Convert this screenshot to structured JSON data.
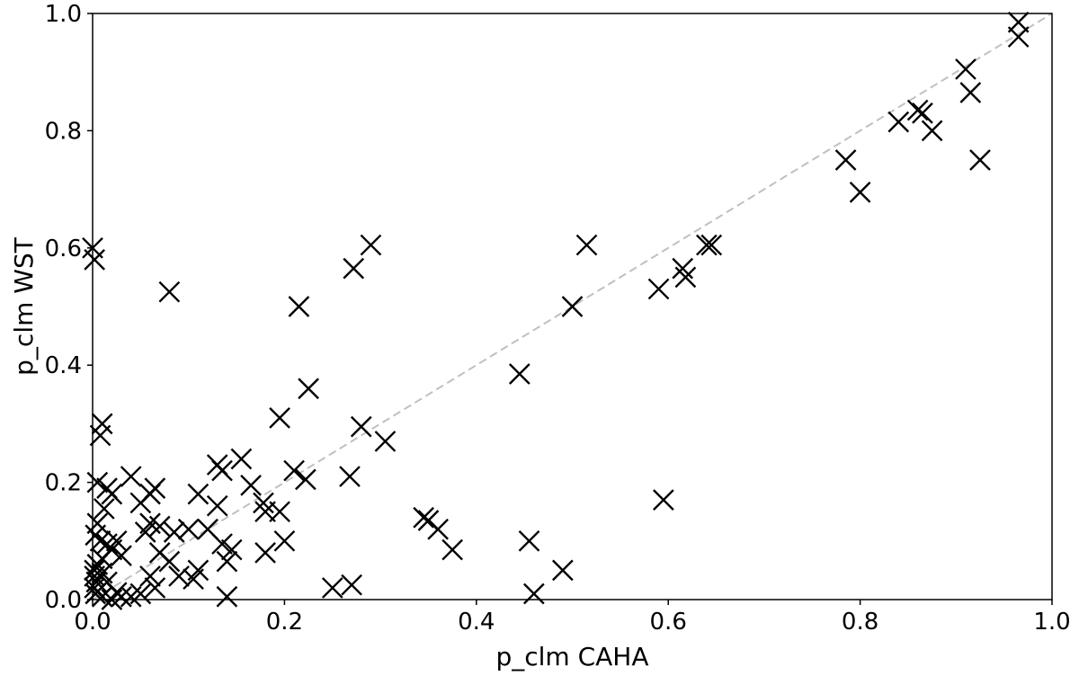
{
  "chart_data": {
    "type": "scatter",
    "title": "",
    "xlabel": "p_clm CAHA",
    "ylabel": "p_clm WST",
    "xlim": [
      0.0,
      1.0
    ],
    "ylim": [
      0.0,
      1.0
    ],
    "xticks": [
      "0.0",
      "0.2",
      "0.4",
      "0.6",
      "0.8",
      "1.0"
    ],
    "yticks": [
      "0.0",
      "0.2",
      "0.4",
      "0.6",
      "0.8",
      "1.0"
    ],
    "grid": false,
    "marker": "x",
    "reference_line": {
      "style": "dashed",
      "color": "#c0c0c0",
      "from": [
        0,
        0
      ],
      "to": [
        1,
        1
      ]
    },
    "points": [
      {
        "x": 0.965,
        "y": 0.985
      },
      {
        "x": 0.965,
        "y": 0.96
      },
      {
        "x": 0.91,
        "y": 0.905
      },
      {
        "x": 0.915,
        "y": 0.865
      },
      {
        "x": 0.925,
        "y": 0.75
      },
      {
        "x": 0.84,
        "y": 0.815
      },
      {
        "x": 0.86,
        "y": 0.835
      },
      {
        "x": 0.865,
        "y": 0.83
      },
      {
        "x": 0.875,
        "y": 0.8
      },
      {
        "x": 0.785,
        "y": 0.75
      },
      {
        "x": 0.8,
        "y": 0.695
      },
      {
        "x": 0.64,
        "y": 0.605
      },
      {
        "x": 0.645,
        "y": 0.605
      },
      {
        "x": 0.615,
        "y": 0.565
      },
      {
        "x": 0.618,
        "y": 0.55
      },
      {
        "x": 0.59,
        "y": 0.53
      },
      {
        "x": 0.515,
        "y": 0.605
      },
      {
        "x": 0.5,
        "y": 0.5
      },
      {
        "x": 0.445,
        "y": 0.385
      },
      {
        "x": 0.595,
        "y": 0.17
      },
      {
        "x": 0.455,
        "y": 0.1
      },
      {
        "x": 0.49,
        "y": 0.05
      },
      {
        "x": 0.46,
        "y": 0.01
      },
      {
        "x": 0.375,
        "y": 0.085
      },
      {
        "x": 0.36,
        "y": 0.12
      },
      {
        "x": 0.35,
        "y": 0.135
      },
      {
        "x": 0.345,
        "y": 0.14
      },
      {
        "x": 0.29,
        "y": 0.605
      },
      {
        "x": 0.272,
        "y": 0.565
      },
      {
        "x": 0.215,
        "y": 0.5
      },
      {
        "x": 0.08,
        "y": 0.525
      },
      {
        "x": 0.0,
        "y": 0.6
      },
      {
        "x": 0.002,
        "y": 0.58
      },
      {
        "x": 0.225,
        "y": 0.36
      },
      {
        "x": 0.195,
        "y": 0.31
      },
      {
        "x": 0.28,
        "y": 0.295
      },
      {
        "x": 0.305,
        "y": 0.27
      },
      {
        "x": 0.21,
        "y": 0.22
      },
      {
        "x": 0.222,
        "y": 0.205
      },
      {
        "x": 0.268,
        "y": 0.21
      },
      {
        "x": 0.155,
        "y": 0.24
      },
      {
        "x": 0.13,
        "y": 0.23
      },
      {
        "x": 0.135,
        "y": 0.22
      },
      {
        "x": 0.165,
        "y": 0.195
      },
      {
        "x": 0.178,
        "y": 0.165
      },
      {
        "x": 0.18,
        "y": 0.15
      },
      {
        "x": 0.195,
        "y": 0.15
      },
      {
        "x": 0.13,
        "y": 0.16
      },
      {
        "x": 0.11,
        "y": 0.18
      },
      {
        "x": 0.12,
        "y": 0.12
      },
      {
        "x": 0.1,
        "y": 0.12
      },
      {
        "x": 0.085,
        "y": 0.115
      },
      {
        "x": 0.07,
        "y": 0.125
      },
      {
        "x": 0.06,
        "y": 0.13
      },
      {
        "x": 0.06,
        "y": 0.18
      },
      {
        "x": 0.065,
        "y": 0.19
      },
      {
        "x": 0.05,
        "y": 0.165
      },
      {
        "x": 0.04,
        "y": 0.21
      },
      {
        "x": 0.135,
        "y": 0.095
      },
      {
        "x": 0.145,
        "y": 0.085
      },
      {
        "x": 0.14,
        "y": 0.065
      },
      {
        "x": 0.2,
        "y": 0.1
      },
      {
        "x": 0.18,
        "y": 0.08
      },
      {
        "x": 0.11,
        "y": 0.05
      },
      {
        "x": 0.105,
        "y": 0.035
      },
      {
        "x": 0.09,
        "y": 0.04
      },
      {
        "x": 0.08,
        "y": 0.065
      },
      {
        "x": 0.07,
        "y": 0.08
      },
      {
        "x": 0.055,
        "y": 0.115
      },
      {
        "x": 0.06,
        "y": 0.04
      },
      {
        "x": 0.065,
        "y": 0.02
      },
      {
        "x": 0.05,
        "y": 0.01
      },
      {
        "x": 0.04,
        "y": 0.005
      },
      {
        "x": 0.14,
        "y": 0.005
      },
      {
        "x": 0.25,
        "y": 0.02
      },
      {
        "x": 0.27,
        "y": 0.025
      },
      {
        "x": 0.01,
        "y": 0.3
      },
      {
        "x": 0.008,
        "y": 0.28
      },
      {
        "x": 0.005,
        "y": 0.2
      },
      {
        "x": 0.015,
        "y": 0.19
      },
      {
        "x": 0.02,
        "y": 0.18
      },
      {
        "x": 0.012,
        "y": 0.155
      },
      {
        "x": 0.005,
        "y": 0.13
      },
      {
        "x": 0.003,
        "y": 0.11
      },
      {
        "x": 0.008,
        "y": 0.1
      },
      {
        "x": 0.015,
        "y": 0.095
      },
      {
        "x": 0.025,
        "y": 0.1
      },
      {
        "x": 0.02,
        "y": 0.085
      },
      {
        "x": 0.03,
        "y": 0.075
      },
      {
        "x": 0.01,
        "y": 0.07
      },
      {
        "x": 0.005,
        "y": 0.06
      },
      {
        "x": 0.002,
        "y": 0.05
      },
      {
        "x": 0.002,
        "y": 0.04
      },
      {
        "x": 0.004,
        "y": 0.03
      },
      {
        "x": 0.002,
        "y": 0.02
      },
      {
        "x": 0.003,
        "y": 0.01
      },
      {
        "x": 0.01,
        "y": 0.005
      },
      {
        "x": 0.02,
        "y": 0.0
      },
      {
        "x": 0.03,
        "y": 0.005
      },
      {
        "x": 0.025,
        "y": 0.012
      },
      {
        "x": 0.015,
        "y": 0.03
      },
      {
        "x": 0.01,
        "y": 0.045
      }
    ]
  }
}
